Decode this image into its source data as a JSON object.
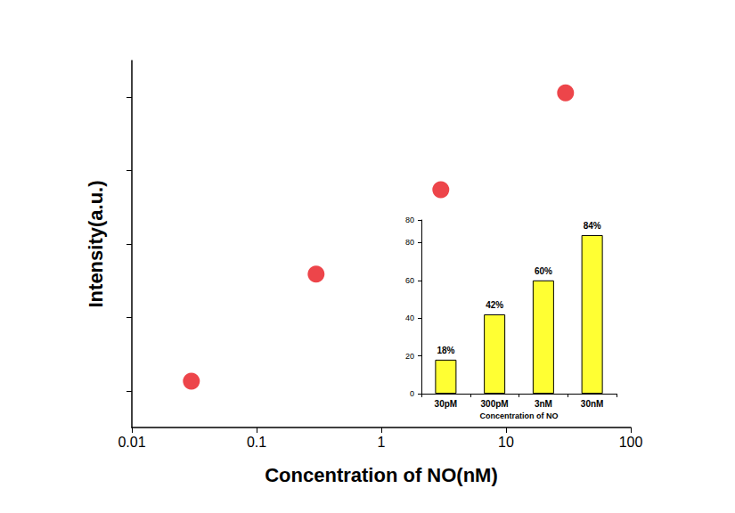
{
  "chart_data": [
    {
      "type": "scatter",
      "x": [
        0.03,
        0.3,
        3,
        30
      ],
      "values": [
        0.63,
        2.09,
        3.24,
        4.56
      ],
      "color": "#e8171d",
      "marker": "circle",
      "xlabel": "Concentration of NO(nM)",
      "ylabel": "Intensity(a.u.)",
      "log": "x",
      "xlim": [
        0.01,
        100
      ],
      "xticks": [
        0.01,
        0.1,
        1,
        10,
        100
      ],
      "ylim": [
        0,
        5
      ],
      "yticks": [
        0.5,
        1.5,
        2.5,
        3.5,
        4.5
      ],
      "tick_labels": "x",
      "grid": false
    },
    {
      "type": "bar",
      "categories": [
        "30pM",
        "300pM",
        "3nM",
        "30nM"
      ],
      "values": [
        18,
        42,
        60,
        84
      ],
      "value_labels": [
        "18%",
        "42%",
        "60%",
        "84%"
      ],
      "data_labels": true,
      "color": "#ffff33",
      "xlabel": "Concentration of NO",
      "ylim": [
        0,
        92
      ],
      "yticks": [
        0,
        20,
        40,
        60,
        80
      ],
      "grid": false
    }
  ]
}
